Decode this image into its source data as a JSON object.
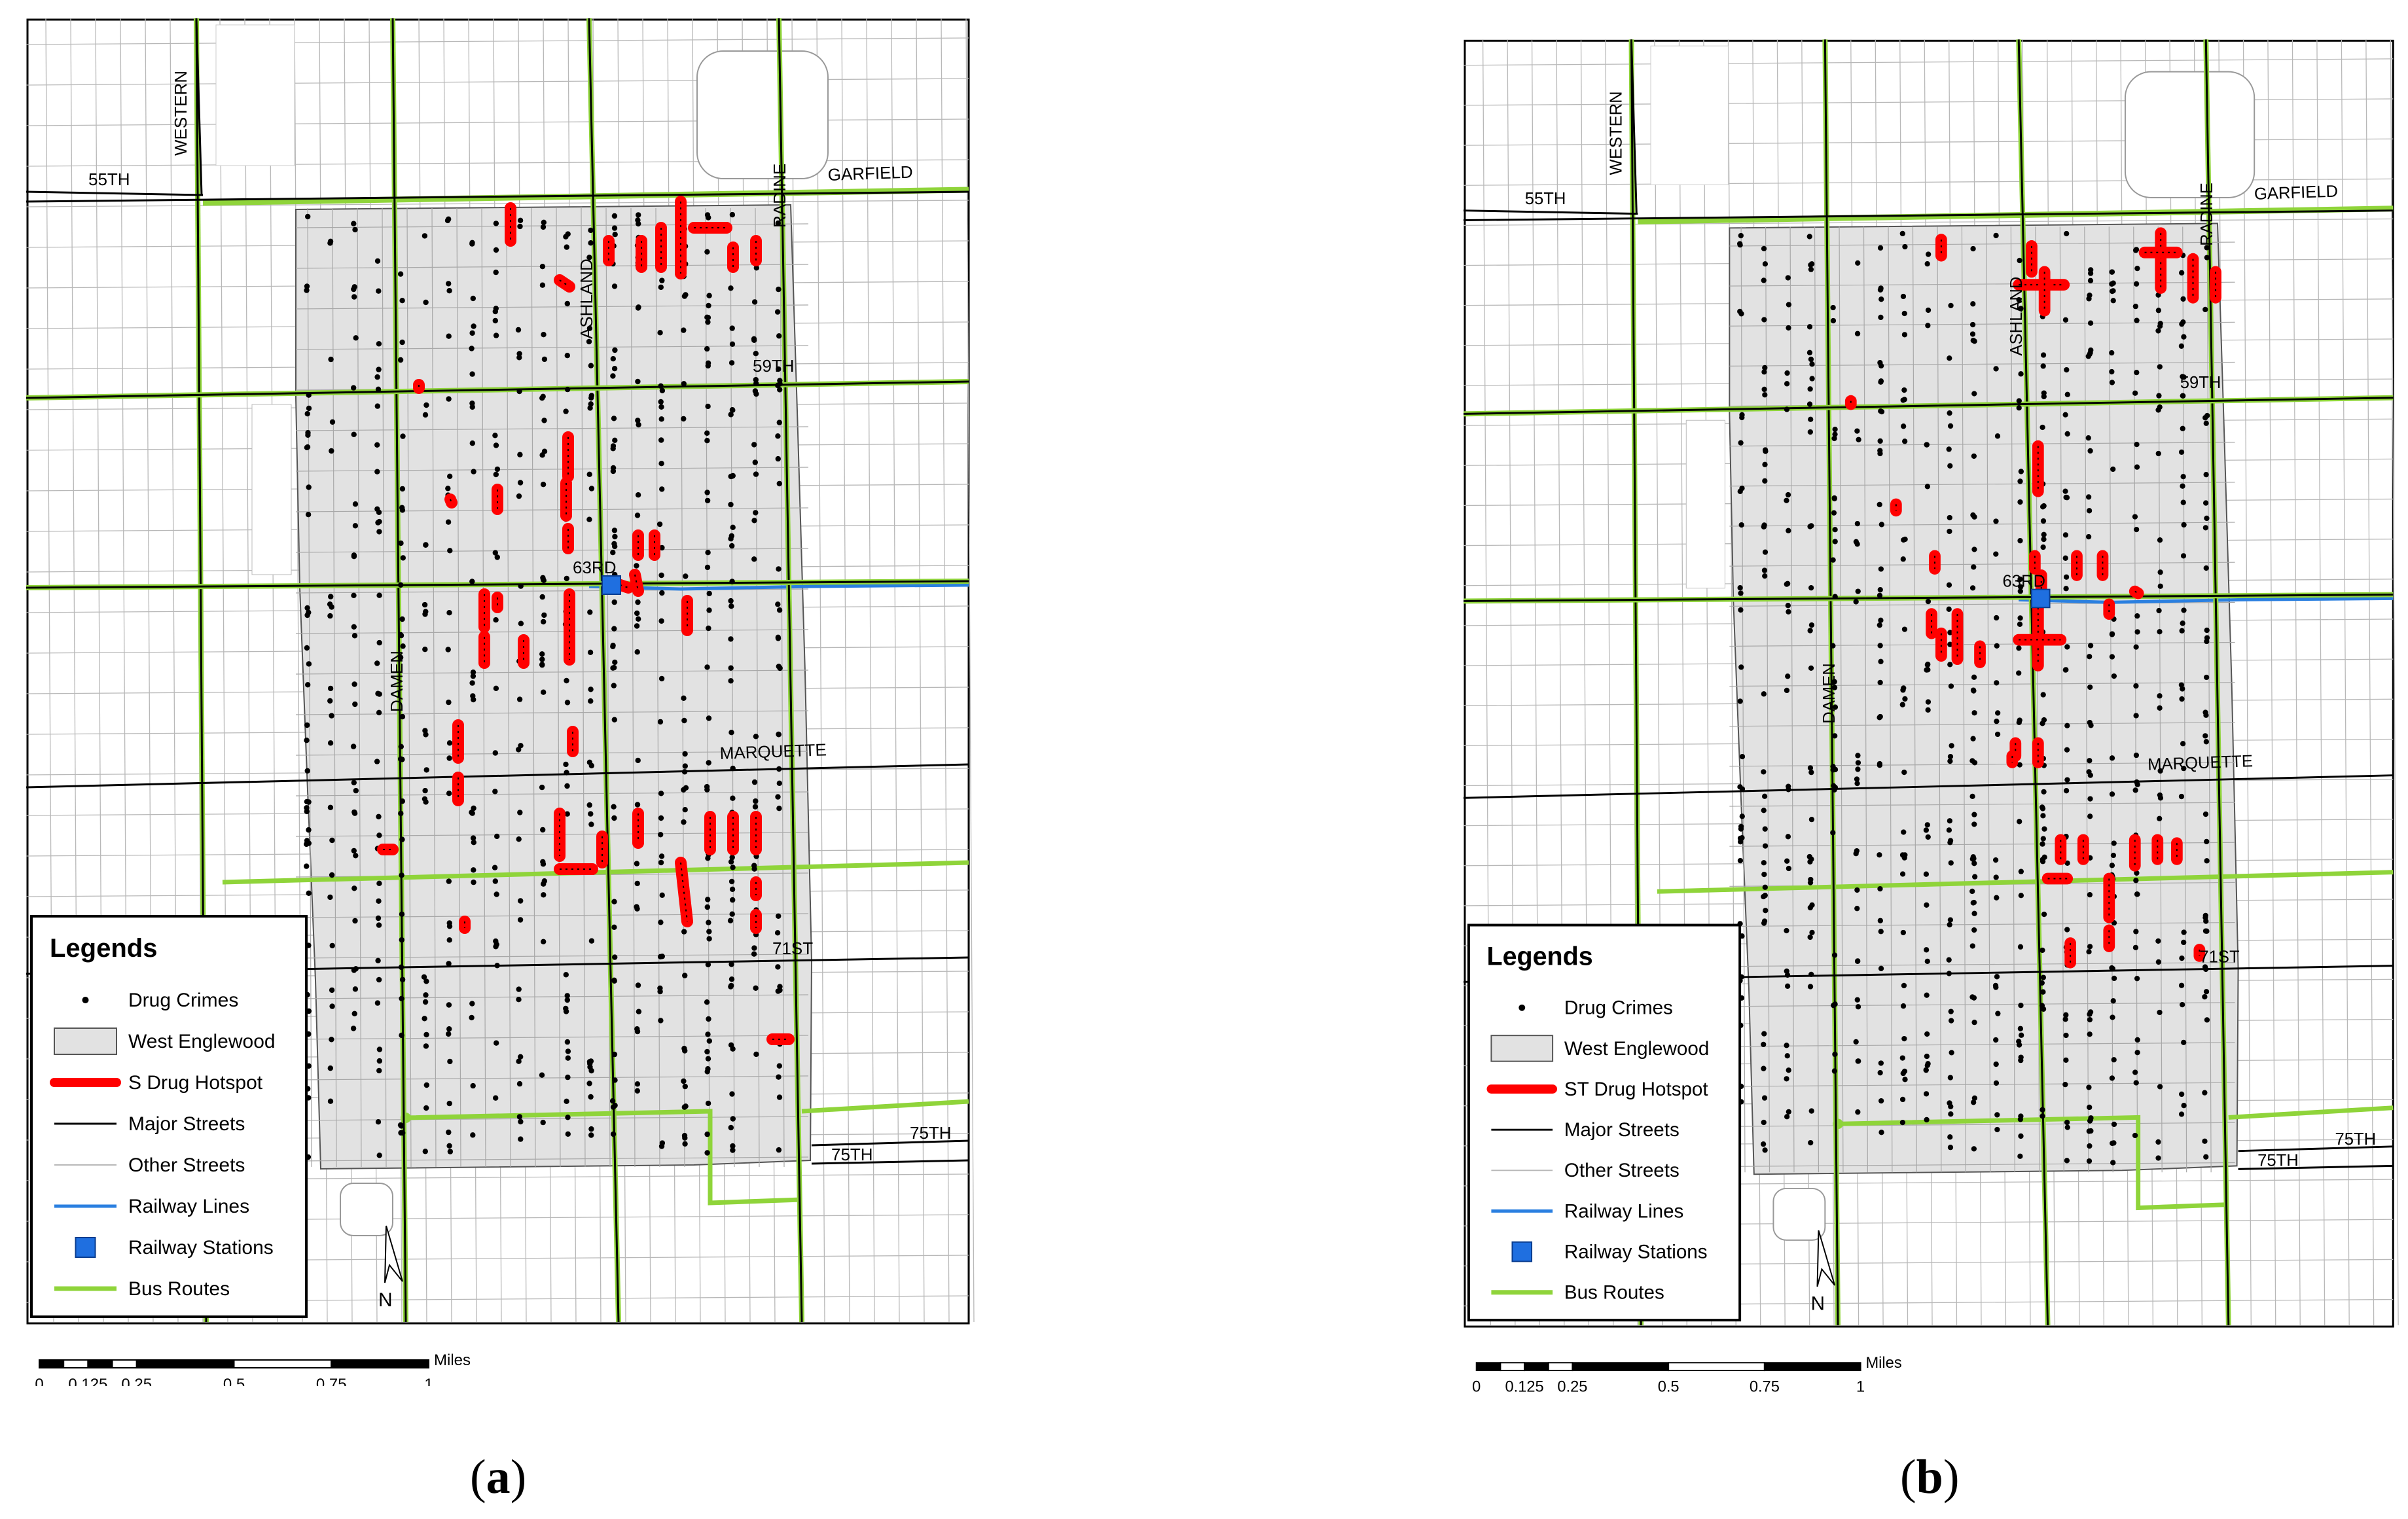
{
  "panels": [
    {
      "id": "a",
      "label": "a",
      "hotspot_label": "S Drug Hotspot"
    },
    {
      "id": "b",
      "label": "b",
      "hotspot_label": "ST Drug Hotspot"
    }
  ],
  "streets": {
    "western": "WESTERN",
    "s55th": "55TH",
    "garfield": "GARFIELD",
    "radine": "RADINE",
    "ashland": "ASHLAND",
    "s59th": "59TH",
    "s63rd": "63RD",
    "damen": "DAMEN",
    "marquette": "MARQUETTE",
    "s71st": "71ST",
    "s75th_a": "75TH",
    "s75th_b": "75TH"
  },
  "legend": {
    "title": "Legends",
    "drug_crimes": "Drug Crimes",
    "west_englewood": "West Englewood",
    "major_streets": "Major Streets",
    "other_streets": "Other Streets",
    "railway_lines": "Railway Lines",
    "railway_stations": "Railway Stations",
    "bus_routes": "Bus Routes"
  },
  "north_arrow": "N",
  "scale_bar": {
    "unit": "Miles",
    "ticks": [
      "0",
      "0.125",
      "0.25",
      "0.5",
      "0.75",
      "1"
    ]
  },
  "colors": {
    "hotspot": "#ff0000",
    "crime_dot": "#000000",
    "area_fill": "#e2e2e2",
    "bus_route": "#8fd43a",
    "railway": "#2a7fe0",
    "station": "#1f6fe0",
    "major_street": "#000000",
    "other_street": "#b8b8b8"
  }
}
